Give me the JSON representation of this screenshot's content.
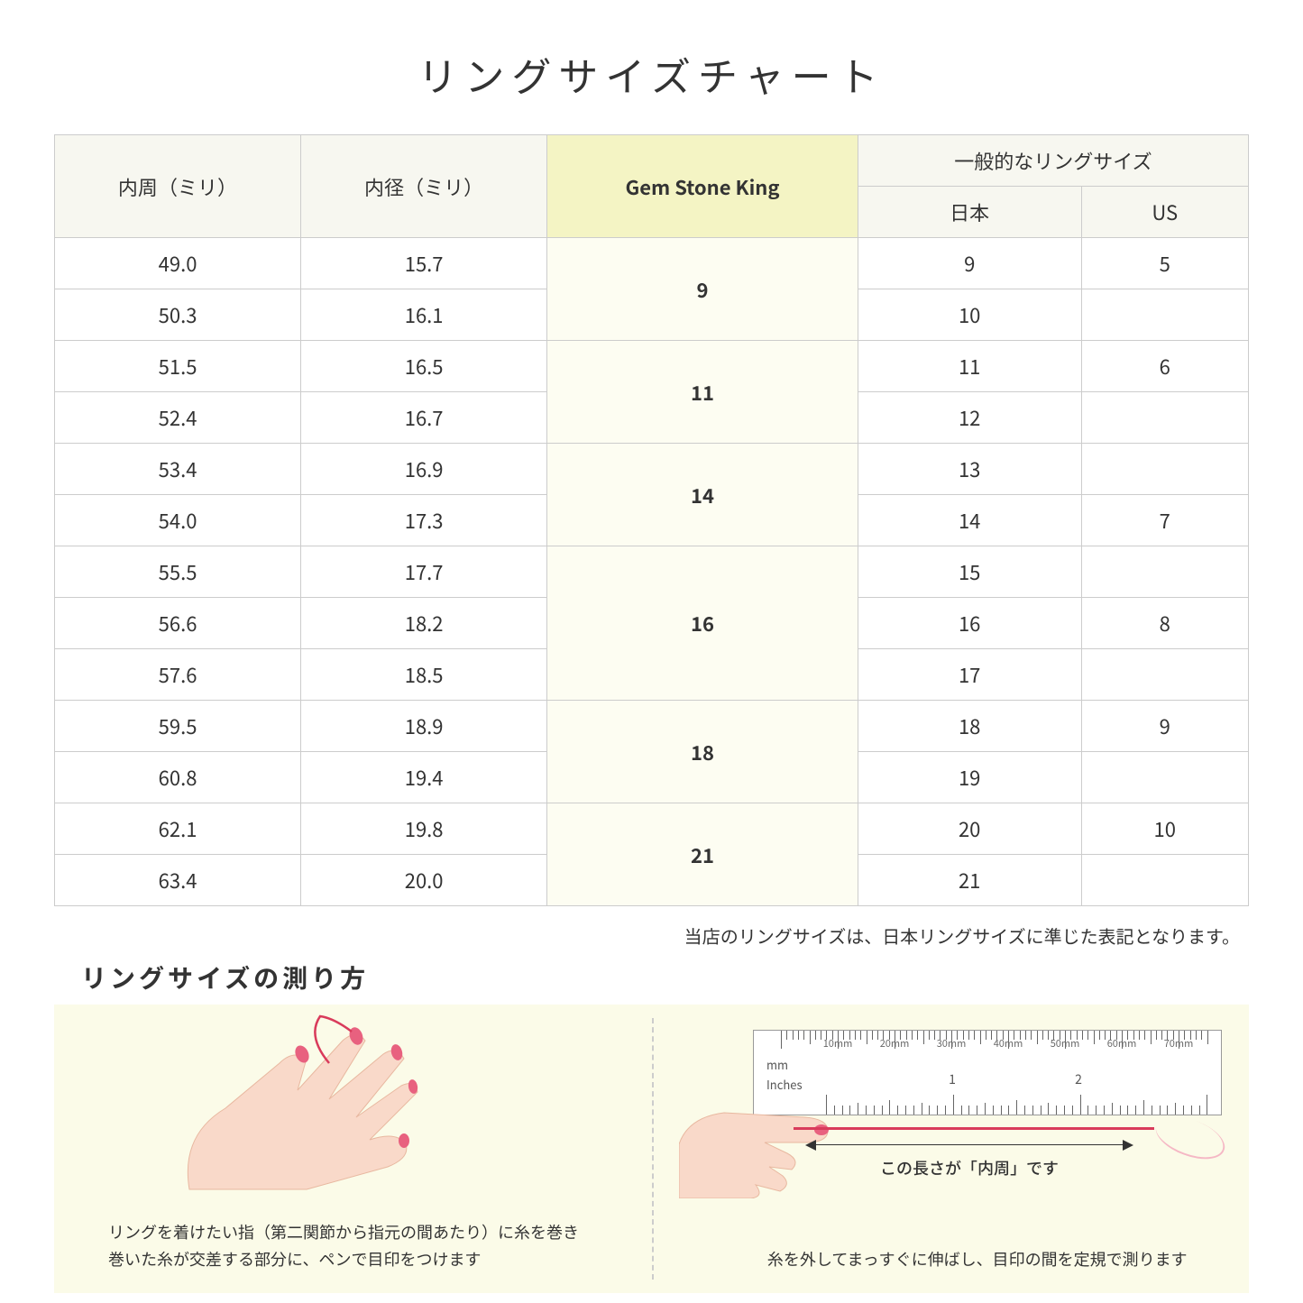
{
  "title": "リングサイズチャート",
  "headers": {
    "circumference": "内周（ミリ）",
    "diameter": "内径（ミリ）",
    "gsk": "Gem Stone King",
    "general": "一般的なリングサイズ",
    "japan": "日本",
    "us": "US"
  },
  "groups": [
    {
      "gsk": "9",
      "rows": [
        {
          "c": "49.0",
          "d": "15.7",
          "jp": "9",
          "us": "5"
        },
        {
          "c": "50.3",
          "d": "16.1",
          "jp": "10",
          "us": ""
        }
      ]
    },
    {
      "gsk": "11",
      "rows": [
        {
          "c": "51.5",
          "d": "16.5",
          "jp": "11",
          "us": "6"
        },
        {
          "c": "52.4",
          "d": "16.7",
          "jp": "12",
          "us": ""
        }
      ]
    },
    {
      "gsk": "14",
      "rows": [
        {
          "c": "53.4",
          "d": "16.9",
          "jp": "13",
          "us": ""
        },
        {
          "c": "54.0",
          "d": "17.3",
          "jp": "14",
          "us": "7"
        }
      ]
    },
    {
      "gsk": "16",
      "rows": [
        {
          "c": "55.5",
          "d": "17.7",
          "jp": "15",
          "us": ""
        },
        {
          "c": "56.6",
          "d": "18.2",
          "jp": "16",
          "us": "8"
        },
        {
          "c": "57.6",
          "d": "18.5",
          "jp": "17",
          "us": ""
        }
      ]
    },
    {
      "gsk": "18",
      "rows": [
        {
          "c": "59.5",
          "d": "18.9",
          "jp": "18",
          "us": "9"
        },
        {
          "c": "60.8",
          "d": "19.4",
          "jp": "19",
          "us": ""
        }
      ]
    },
    {
      "gsk": "21",
      "rows": [
        {
          "c": "62.1",
          "d": "19.8",
          "jp": "20",
          "us": "10"
        },
        {
          "c": "63.4",
          "d": "20.0",
          "jp": "21",
          "us": ""
        }
      ]
    }
  ],
  "note": "当店のリングサイズは、日本リングサイズに準じた表記となります。",
  "subtitle": "リングサイズの測り方",
  "caption_left": "リングを着けたい指（第二関節から指元の間あたり）に糸を巻き\n巻いた糸が交差する部分に、ペンで目印をつけます",
  "caption_right": "糸を外してまっすぐに伸ばし、目印の間を定規で測ります",
  "arrow_label": "この長さが「内周」です",
  "ruler": {
    "mm_label": "mm",
    "in_label": "Inches",
    "mm_ticks": [
      "10mm",
      "20mm",
      "30mm",
      "40mm",
      "50mm",
      "60mm",
      "70mm"
    ],
    "in_ticks": [
      "1",
      "2"
    ]
  },
  "colors": {
    "header_bg": "#f7f7f0",
    "gsk_header_bg": "#f4f4c4",
    "gsk_cell_bg": "#fdfdf2",
    "border": "#cccccc",
    "illus_bg": "#fbfbe8",
    "thread": "#d93b5b",
    "skin": "#f9d9c9",
    "nail": "#e8617f"
  }
}
